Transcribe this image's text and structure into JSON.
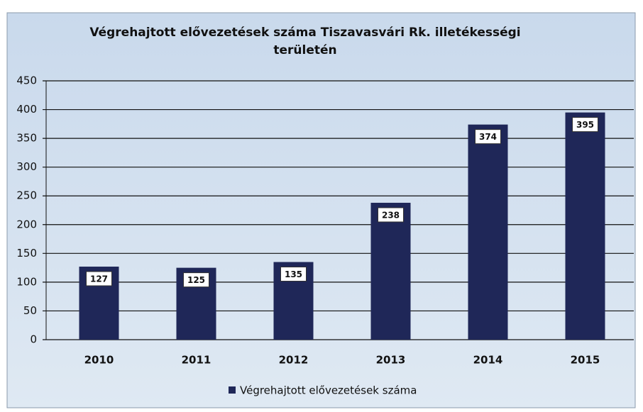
{
  "chart_data": {
    "type": "bar",
    "title": "Végrehajtott elővezetések száma Tiszavasvári Rk. illetékességi területén",
    "categories": [
      "2010",
      "2011",
      "2012",
      "2013",
      "2014",
      "2015"
    ],
    "series": [
      {
        "name": "Végrehajtott elővezetések száma",
        "color": "#1f2758",
        "values": [
          127,
          125,
          135,
          238,
          374,
          395
        ]
      }
    ],
    "ylim": [
      0,
      450
    ],
    "yticks": [
      0,
      50,
      100,
      150,
      200,
      250,
      300,
      350,
      400,
      450
    ],
    "grid": true,
    "legend": "bottom"
  }
}
